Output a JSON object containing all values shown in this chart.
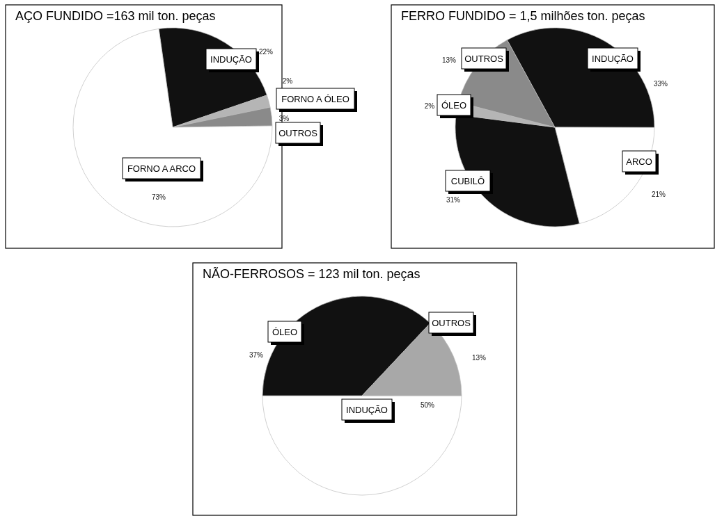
{
  "chart_data": [
    {
      "type": "pie",
      "title": "AÇO  FUNDIDO =163 mil ton. peças",
      "categories": [
        "INDUÇÃO",
        "FORNO A ÓLEO",
        "OUTROS",
        "FORNO A ARCO"
      ],
      "values": [
        22,
        2,
        3,
        73
      ],
      "value_labels": [
        "22%",
        "2%",
        "3%",
        "73%"
      ],
      "colors": [
        "#111111",
        "#b5b5b5",
        "#8a8a8a",
        "#ffffff"
      ]
    },
    {
      "type": "pie",
      "title": "FERRO  FUNDIDO = 1,5 milhões ton. peças",
      "categories": [
        "INDUÇÃO",
        "ARCO",
        "CUBILÔ",
        "ÓLEO",
        "OUTROS"
      ],
      "values": [
        33,
        21,
        31,
        2,
        13
      ],
      "value_labels": [
        "33%",
        "21%",
        "31%",
        "2%",
        "13%"
      ],
      "colors": [
        "#111111",
        "#ffffff",
        "#111111",
        "#b5b5b5",
        "#8a8a8a"
      ]
    },
    {
      "type": "pie",
      "title": "NÃO-FERROSOS  = 123 mil ton. peças",
      "categories": [
        "INDUÇÃO",
        "ÓLEO",
        "OUTROS"
      ],
      "values": [
        50,
        37,
        13
      ],
      "value_labels": [
        "50%",
        "37%",
        "13%"
      ],
      "colors": [
        "#ffffff",
        "#111111",
        "#a8a8a8"
      ]
    }
  ]
}
